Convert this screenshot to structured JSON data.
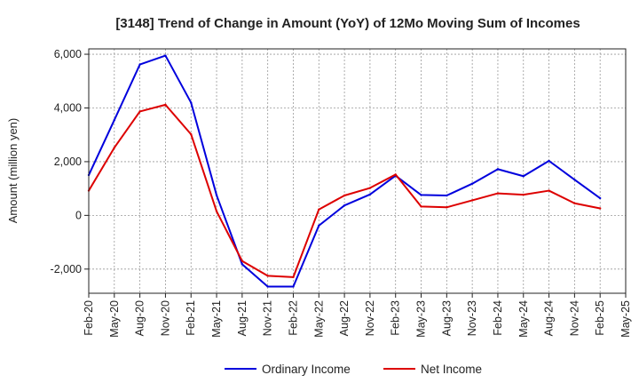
{
  "chart_data": {
    "type": "line",
    "title": "[3148]  Trend of Change in Amount (YoY) of 12Mo Moving Sum of Incomes",
    "ylabel": "Amount (million yen)",
    "xlabel": "",
    "categories": [
      "Feb-20",
      "May-20",
      "Aug-20",
      "Nov-20",
      "Feb-21",
      "May-21",
      "Aug-21",
      "Nov-21",
      "Feb-22",
      "May-22",
      "Aug-22",
      "Nov-22",
      "Feb-23",
      "May-23",
      "Aug-23",
      "Nov-23",
      "Feb-24",
      "May-24",
      "Aug-24",
      "Nov-24",
      "Feb-25",
      "May-25"
    ],
    "ylim": [
      -2900,
      6200
    ],
    "yticks": [
      -2000,
      0,
      2000,
      4000,
      6000
    ],
    "ytick_labels": [
      "-2,000",
      "0",
      "2,000",
      "4,000",
      "6,000"
    ],
    "grid": true,
    "legend_position": "bottom",
    "series": [
      {
        "name": "Ordinary Income",
        "color": "#0000dd",
        "values": [
          1500,
          3550,
          5620,
          5950,
          4200,
          750,
          -1820,
          -2650,
          -2650,
          -380,
          370,
          780,
          1480,
          760,
          740,
          1180,
          1720,
          1460,
          2030,
          1330,
          640,
          null
        ]
      },
      {
        "name": "Net Income",
        "color": "#dd0000",
        "values": [
          920,
          2520,
          3870,
          4120,
          3020,
          150,
          -1700,
          -2250,
          -2300,
          220,
          740,
          1020,
          1520,
          330,
          300,
          560,
          820,
          770,
          920,
          450,
          260,
          null
        ]
      }
    ]
  }
}
